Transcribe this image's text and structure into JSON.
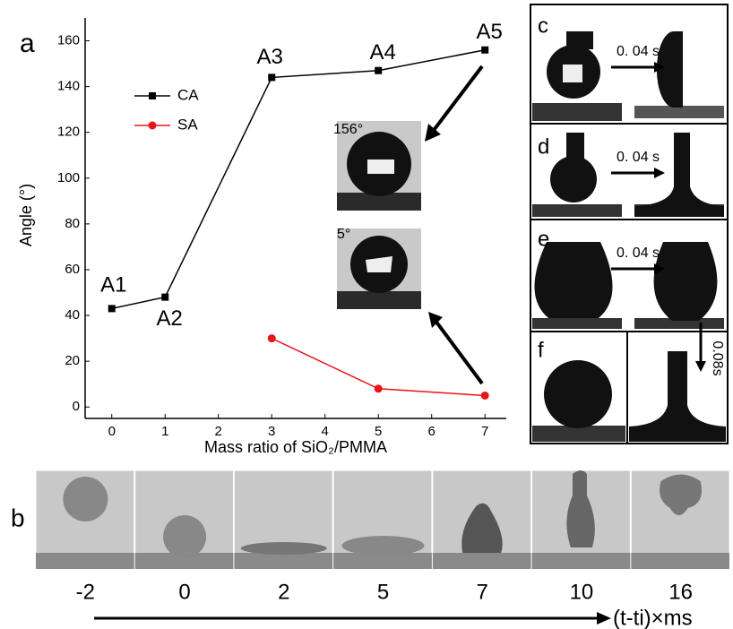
{
  "chart_data": {
    "type": "line",
    "y_label": "Angle (°)",
    "x_label": "Mass ratio of SiO₂/PMMA",
    "xlim": [
      -0.5,
      7.4
    ],
    "xticks": [
      0,
      1,
      2,
      3,
      4,
      5,
      6,
      7
    ],
    "ylim": [
      -5,
      170
    ],
    "yticks": [
      0,
      20,
      40,
      60,
      80,
      100,
      120,
      140,
      160
    ],
    "series": [
      {
        "name": "CA",
        "color": "#000000",
        "marker": "square",
        "x": [
          0,
          1,
          3,
          5,
          7
        ],
        "values": [
          43,
          48,
          144,
          147,
          156
        ]
      },
      {
        "name": "SA",
        "color": "#e8141b",
        "marker": "circle",
        "x": [
          3,
          5,
          7
        ],
        "values": [
          30,
          8,
          5
        ]
      }
    ],
    "annotations": [
      "A1",
      "A2",
      "A3",
      "A4",
      "A5"
    ],
    "legend": "upper left"
  },
  "figure": {
    "panel_labels": [
      "a",
      "b",
      "c",
      "d",
      "e",
      "f"
    ],
    "inset_angles": [
      "156°",
      "5°"
    ],
    "interval_labels": [
      "0. 04 s",
      "0. 04 s",
      "0. 04 s",
      "0.08s"
    ],
    "b": {
      "times": [
        "-2",
        "0",
        "2",
        "5",
        "7",
        "10",
        "16"
      ],
      "axis_label": "(t-ti)×ms"
    }
  }
}
